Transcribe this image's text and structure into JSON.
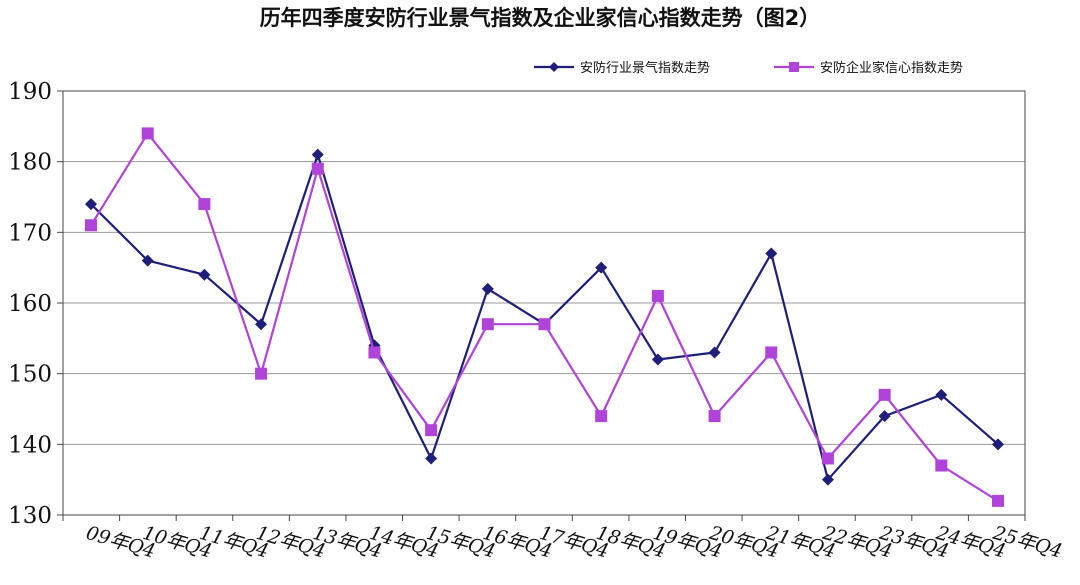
{
  "chart_data": {
    "type": "line",
    "title": "历年四季度安防行业景气指数及企业家信心指数走势（图2）",
    "categories": [
      "09年Q4",
      "10年Q4",
      "11年Q4",
      "12年Q4",
      "13年Q4",
      "14年Q4",
      "15年Q4",
      "16年Q4",
      "17年Q4",
      "18年Q4",
      "19年Q4",
      "20年Q4",
      "21年Q4",
      "22年Q4",
      "23年Q4",
      "24年Q4",
      "25年Q4"
    ],
    "series": [
      {
        "name": "安防行业景气指数走势",
        "color": "#1f1f7a",
        "marker": "diamond",
        "values": [
          174,
          166,
          164,
          157,
          181,
          154,
          138,
          162,
          157,
          165,
          152,
          153,
          167,
          135,
          144,
          147,
          140
        ]
      },
      {
        "name": "安防企业家信心指数走势",
        "color": "#b044d8",
        "marker": "square",
        "values": [
          171,
          184,
          174,
          150,
          179,
          153,
          142,
          157,
          157,
          144,
          161,
          144,
          153,
          138,
          147,
          137,
          132
        ]
      }
    ],
    "ylim": [
      130,
      190
    ],
    "yticks": [
      130,
      140,
      150,
      160,
      170,
      180,
      190
    ],
    "grid": true,
    "legend": "top-right"
  }
}
